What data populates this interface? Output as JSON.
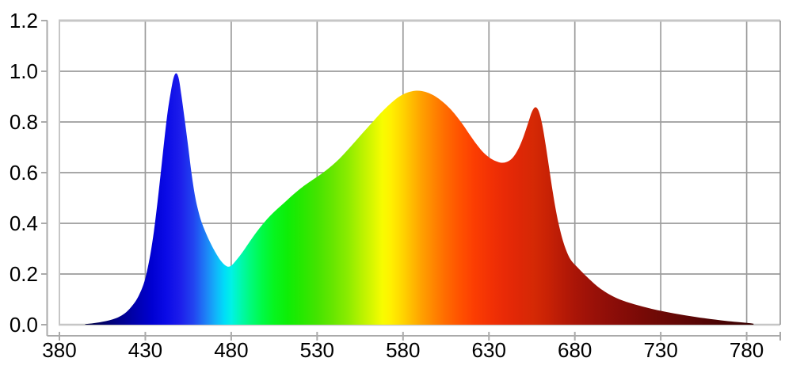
{
  "figure": {
    "background": "#ffffff",
    "grid_color": "#9c9c9c",
    "border_color": "#c6c6c6",
    "right_border_color": "#8f8f8f",
    "axis_spine_color": "#aaaaaa",
    "label_color": "#000000"
  },
  "chart_data": {
    "type": "area",
    "title": "",
    "xlabel": "",
    "ylabel": "",
    "xlim": [
      380,
      800
    ],
    "ylim": [
      0,
      1.2
    ],
    "grid": true,
    "x_tick_values": [
      380,
      430,
      480,
      530,
      580,
      630,
      680,
      730,
      780
    ],
    "x_tick_labels": [
      "380",
      "430",
      "480",
      "530",
      "580",
      "630",
      "680",
      "730",
      "780"
    ],
    "y_tick_values": [
      0.0,
      0.2,
      0.4,
      0.6,
      0.8,
      1.0,
      1.2
    ],
    "y_tick_labels": [
      "0.0",
      "0.2",
      "0.4",
      "0.6",
      "0.8",
      "1.0",
      "1.2"
    ],
    "description": "Spectral curve filled with visible-spectrum gradient: peaks at ~447nm (0.99), ~588nm (0.92), ~656nm (0.86); minima at ~477nm (0.23) and ~638nm (0.64); tail fades to ~0 at 780nm",
    "points": [
      [
        395,
        0.002
      ],
      [
        399,
        0.005
      ],
      [
        403,
        0.009
      ],
      [
        407,
        0.014
      ],
      [
        411,
        0.021
      ],
      [
        415,
        0.032
      ],
      [
        419,
        0.05
      ],
      [
        423,
        0.08
      ],
      [
        426,
        0.112
      ],
      [
        429,
        0.16
      ],
      [
        431,
        0.212
      ],
      [
        433,
        0.28
      ],
      [
        435,
        0.368
      ],
      [
        437,
        0.478
      ],
      [
        439,
        0.6
      ],
      [
        441,
        0.725
      ],
      [
        443,
        0.84
      ],
      [
        445,
        0.925
      ],
      [
        446.5,
        0.975
      ],
      [
        448,
        0.992
      ],
      [
        449.5,
        0.97
      ],
      [
        451,
        0.905
      ],
      [
        453,
        0.805
      ],
      [
        455,
        0.7
      ],
      [
        457,
        0.592
      ],
      [
        459,
        0.505
      ],
      [
        461,
        0.445
      ],
      [
        463,
        0.4
      ],
      [
        466,
        0.35
      ],
      [
        469,
        0.308
      ],
      [
        472,
        0.272
      ],
      [
        474,
        0.252
      ],
      [
        476,
        0.237
      ],
      [
        478,
        0.229
      ],
      [
        480,
        0.233
      ],
      [
        482,
        0.247
      ],
      [
        485,
        0.272
      ],
      [
        488,
        0.3
      ],
      [
        491,
        0.33
      ],
      [
        495,
        0.368
      ],
      [
        499,
        0.402
      ],
      [
        503,
        0.432
      ],
      [
        507,
        0.458
      ],
      [
        511,
        0.482
      ],
      [
        515,
        0.507
      ],
      [
        519,
        0.53
      ],
      [
        523,
        0.551
      ],
      [
        527,
        0.57
      ],
      [
        531,
        0.588
      ],
      [
        535,
        0.608
      ],
      [
        539,
        0.63
      ],
      [
        543,
        0.655
      ],
      [
        547,
        0.684
      ],
      [
        551,
        0.714
      ],
      [
        555,
        0.745
      ],
      [
        559,
        0.775
      ],
      [
        563,
        0.805
      ],
      [
        567,
        0.835
      ],
      [
        571,
        0.862
      ],
      [
        575,
        0.886
      ],
      [
        579,
        0.905
      ],
      [
        583,
        0.917
      ],
      [
        587,
        0.923
      ],
      [
        591,
        0.922
      ],
      [
        595,
        0.914
      ],
      [
        599,
        0.9
      ],
      [
        603,
        0.88
      ],
      [
        607,
        0.855
      ],
      [
        611,
        0.824
      ],
      [
        615,
        0.788
      ],
      [
        619,
        0.748
      ],
      [
        623,
        0.71
      ],
      [
        627,
        0.678
      ],
      [
        631,
        0.656
      ],
      [
        635,
        0.643
      ],
      [
        638,
        0.639
      ],
      [
        641,
        0.644
      ],
      [
        644,
        0.66
      ],
      [
        647,
        0.692
      ],
      [
        650,
        0.74
      ],
      [
        653,
        0.8
      ],
      [
        655,
        0.84
      ],
      [
        657,
        0.858
      ],
      [
        659,
        0.842
      ],
      [
        661,
        0.79
      ],
      [
        663,
        0.71
      ],
      [
        665,
        0.62
      ],
      [
        667,
        0.53
      ],
      [
        669,
        0.45
      ],
      [
        671,
        0.385
      ],
      [
        673,
        0.333
      ],
      [
        675,
        0.293
      ],
      [
        677,
        0.263
      ],
      [
        679,
        0.244
      ],
      [
        681,
        0.23
      ],
      [
        684,
        0.209
      ],
      [
        687,
        0.189
      ],
      [
        690,
        0.17
      ],
      [
        693,
        0.152
      ],
      [
        696,
        0.137
      ],
      [
        700,
        0.12
      ],
      [
        704,
        0.106
      ],
      [
        708,
        0.095
      ],
      [
        712,
        0.086
      ],
      [
        717,
        0.076
      ],
      [
        722,
        0.067
      ],
      [
        727,
        0.059
      ],
      [
        732,
        0.052
      ],
      [
        738,
        0.044
      ],
      [
        744,
        0.037
      ],
      [
        750,
        0.031
      ],
      [
        756,
        0.025
      ],
      [
        762,
        0.02
      ],
      [
        768,
        0.015
      ],
      [
        774,
        0.011
      ],
      [
        779,
        0.008
      ],
      [
        782,
        0.006
      ],
      [
        784,
        0.004
      ]
    ],
    "fill_gradient_stops": [
      [
        395,
        "#000040"
      ],
      [
        403,
        "#00005e"
      ],
      [
        410,
        "#000078"
      ],
      [
        418,
        "#000096"
      ],
      [
        426,
        "#0000b4"
      ],
      [
        434,
        "#0000d2"
      ],
      [
        442,
        "#0a0ae6"
      ],
      [
        450,
        "#1c1ceb"
      ],
      [
        458,
        "#2244f0"
      ],
      [
        465,
        "#1e7ef6"
      ],
      [
        471,
        "#12b4fa"
      ],
      [
        476,
        "#00dcf8"
      ],
      [
        480,
        "#00f2e6"
      ],
      [
        485,
        "#00f8b4"
      ],
      [
        491,
        "#00fa7d"
      ],
      [
        498,
        "#00fa46"
      ],
      [
        505,
        "#06f51e"
      ],
      [
        513,
        "#0eee06"
      ],
      [
        521,
        "#26e800"
      ],
      [
        530,
        "#44e400"
      ],
      [
        539,
        "#66e600"
      ],
      [
        548,
        "#8cec00"
      ],
      [
        556,
        "#b8f200"
      ],
      [
        563,
        "#dcf800"
      ],
      [
        568,
        "#f8fc00"
      ],
      [
        573,
        "#fff000"
      ],
      [
        579,
        "#ffd800"
      ],
      [
        585,
        "#ffbc00"
      ],
      [
        591,
        "#ffa000"
      ],
      [
        598,
        "#ff8400"
      ],
      [
        605,
        "#ff6a00"
      ],
      [
        613,
        "#ff5200"
      ],
      [
        621,
        "#fc3e02"
      ],
      [
        630,
        "#f33204"
      ],
      [
        639,
        "#e92a06"
      ],
      [
        648,
        "#de2706"
      ],
      [
        656,
        "#d52905"
      ],
      [
        664,
        "#c92205"
      ],
      [
        672,
        "#b91b06"
      ],
      [
        680,
        "#aa1507"
      ],
      [
        690,
        "#9b1108"
      ],
      [
        700,
        "#8e0e08"
      ],
      [
        712,
        "#810b07"
      ],
      [
        724,
        "#730a06"
      ],
      [
        738,
        "#650806"
      ],
      [
        752,
        "#570505"
      ],
      [
        766,
        "#480303"
      ],
      [
        779,
        "#3d0202"
      ],
      [
        785,
        "#380202"
      ]
    ]
  }
}
